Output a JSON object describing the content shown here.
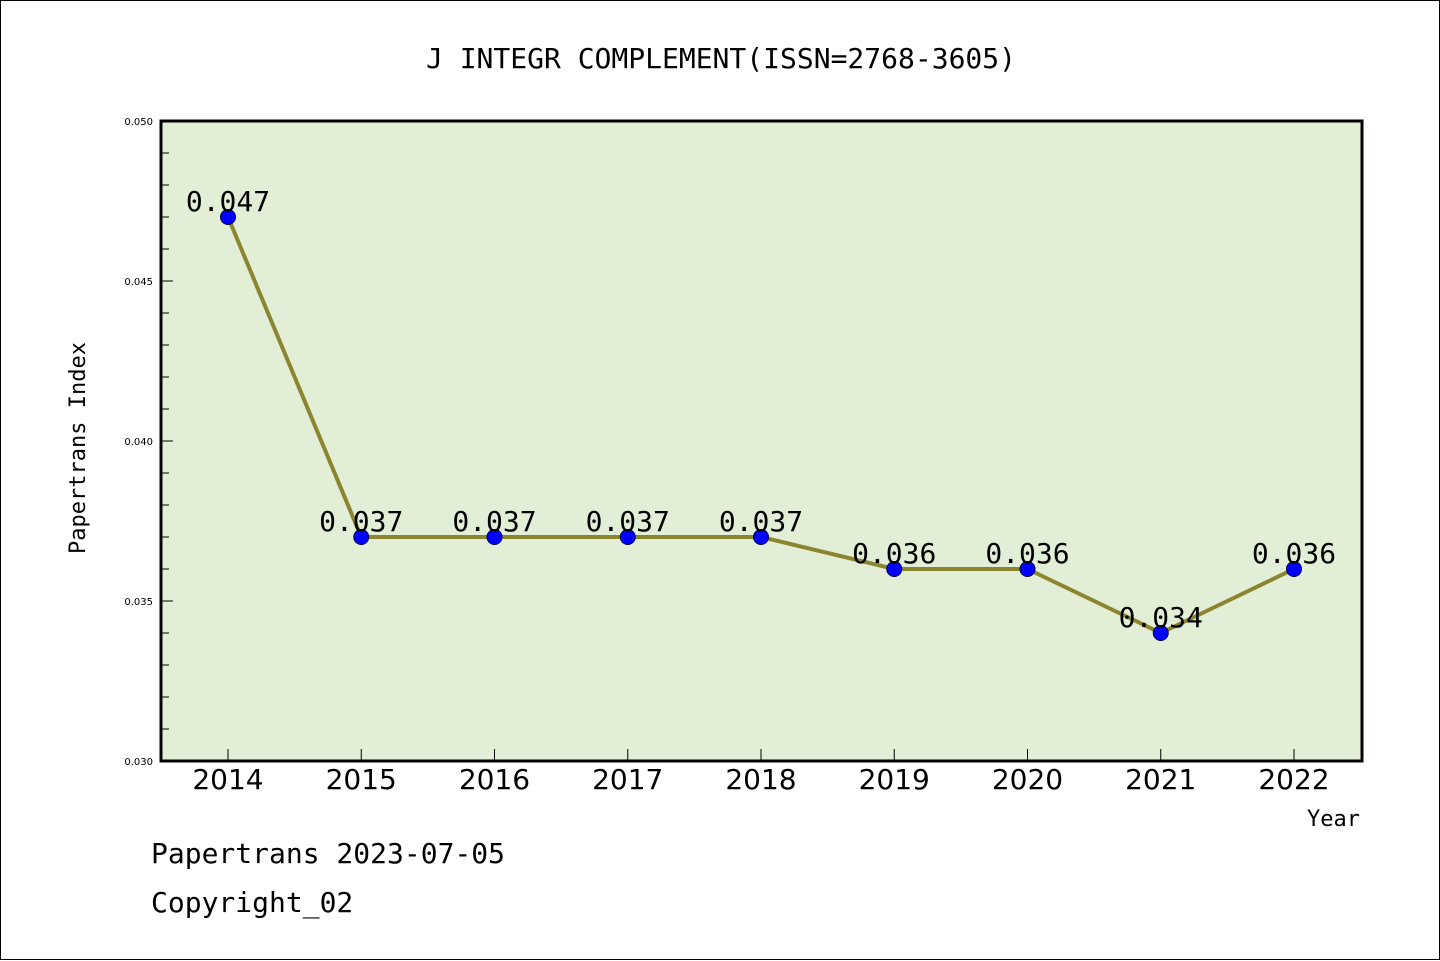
{
  "chart_data": {
    "type": "line",
    "title": "J INTEGR COMPLEMENT(ISSN=2768-3605)",
    "xlabel": "Year",
    "ylabel": "Papertrans Index",
    "categories": [
      "2014",
      "2015",
      "2016",
      "2017",
      "2018",
      "2019",
      "2020",
      "2021",
      "2022"
    ],
    "series": [
      {
        "values": [
          0.047,
          0.037,
          0.037,
          0.037,
          0.037,
          0.036,
          0.036,
          0.034,
          0.036
        ]
      }
    ],
    "data_labels": [
      "0.047",
      "0.037",
      "0.037",
      "0.037",
      "0.037",
      "0.036",
      "0.036",
      "0.034",
      "0.036"
    ],
    "ylim": [
      0.03,
      0.05
    ],
    "yticks": [
      "0.030",
      "0.035",
      "0.040",
      "0.045",
      "0.050"
    ],
    "grid": false,
    "colors": {
      "plot_background": "#e2efd6",
      "line": "#8b8530",
      "marker": "#0000ff"
    }
  },
  "footer": {
    "line1": "Papertrans 2023-07-05",
    "line2": "Copyright_02"
  }
}
